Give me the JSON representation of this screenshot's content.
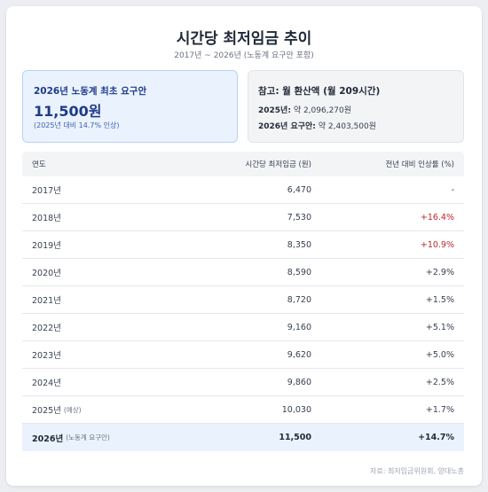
{
  "header": {
    "title": "시간당 최저임금 추이",
    "subtitle": "2017년 ~ 2026년 (노동계 요구안 포함)"
  },
  "highlight": {
    "label": "2026년 노동계 최초 요구안",
    "value": "11,500원",
    "note": "(2025년 대비 14.7% 인상)"
  },
  "reference": {
    "title": "참고: 월 환산액 (월 209시간)",
    "line1_label": "2025년:",
    "line1_value": "약 2,096,270원",
    "line2_label": "2026년 요구안:",
    "line2_value": "약 2,403,500원"
  },
  "table": {
    "headers": [
      "연도",
      "시간당 최저임금 (원)",
      "전년 대비 인상률 (%)"
    ],
    "rows": [
      {
        "year": "2017년",
        "note": "",
        "wage": "6,470",
        "change": "-",
        "highlight": false
      },
      {
        "year": "2018년",
        "note": "",
        "wage": "7,530",
        "change": "+16.4%",
        "highlight": true
      },
      {
        "year": "2019년",
        "note": "",
        "wage": "8,350",
        "change": "+10.9%",
        "highlight": true
      },
      {
        "year": "2020년",
        "note": "",
        "wage": "8,590",
        "change": "+2.9%",
        "highlight": false
      },
      {
        "year": "2021년",
        "note": "",
        "wage": "8,720",
        "change": "+1.5%",
        "highlight": false
      },
      {
        "year": "2022년",
        "note": "",
        "wage": "9,160",
        "change": "+5.1%",
        "highlight": false
      },
      {
        "year": "2023년",
        "note": "",
        "wage": "9,620",
        "change": "+5.0%",
        "highlight": false
      },
      {
        "year": "2024년",
        "note": "",
        "wage": "9,860",
        "change": "+2.5%",
        "highlight": false
      },
      {
        "year": "2025년",
        "note": "(예상)",
        "wage": "10,030",
        "change": "+1.7%",
        "highlight": false
      },
      {
        "year": "2026년",
        "note": "(노동계 요구안)",
        "wage": "11,500",
        "change": "+14.7%",
        "highlight": false
      }
    ]
  },
  "source": "자료: 최저임금위원회, 양대노총",
  "colors": {
    "accent": "#1e3a8a",
    "increase_red": "#c0262d",
    "highlight_bg": "#eaf2fe"
  }
}
